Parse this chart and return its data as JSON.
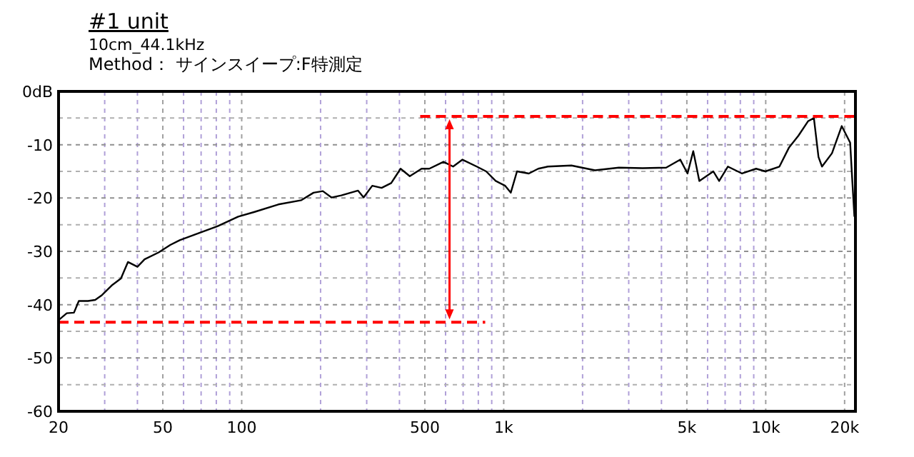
{
  "chart_data": {
    "type": "line",
    "title": "#1 unit",
    "subtitle": "10cm_44.1kHz",
    "annotations": [
      "Method： サインスイープ:F特測定"
    ],
    "log": "x",
    "grid": true,
    "xlim": [
      20,
      22000
    ],
    "ylim": [
      -60,
      0
    ],
    "xticks": [
      20,
      {
        "value": 30,
        "label": null
      },
      {
        "value": 40,
        "label": null
      },
      50,
      {
        "value": 60,
        "label": null
      },
      {
        "value": 70,
        "label": null
      },
      {
        "value": 80,
        "label": null
      },
      {
        "value": 90,
        "label": null
      },
      100,
      {
        "value": 200,
        "label": null
      },
      {
        "value": 300,
        "label": null
      },
      {
        "value": 400,
        "label": null
      },
      500,
      {
        "value": 600,
        "label": null
      },
      {
        "value": 700,
        "label": null
      },
      {
        "value": 800,
        "label": null
      },
      {
        "value": 900,
        "label": null
      },
      {
        "value": 1000,
        "label": "1k"
      },
      {
        "value": 2000,
        "label": null
      },
      {
        "value": 3000,
        "label": null
      },
      {
        "value": 4000,
        "label": null
      },
      {
        "value": 5000,
        "label": "5k"
      },
      {
        "value": 6000,
        "label": null
      },
      {
        "value": 7000,
        "label": null
      },
      {
        "value": 8000,
        "label": null
      },
      {
        "value": 9000,
        "label": null
      },
      {
        "value": 10000,
        "label": "10k"
      },
      {
        "value": 20000,
        "label": "20k"
      }
    ],
    "yticks": [
      {
        "value": 0,
        "label": "0dB"
      },
      {
        "value": -5,
        "label": null
      },
      -10,
      {
        "value": -15,
        "label": null
      },
      -20,
      {
        "value": -25,
        "label": null
      },
      -30,
      {
        "value": -35,
        "label": null
      },
      -40,
      {
        "value": -45,
        "label": null
      },
      -50,
      {
        "value": -55,
        "label": null
      },
      -60
    ],
    "series": [
      {
        "color": "#000000",
        "x": [
          20,
          21.5,
          22.9,
          23.9,
          25.9,
          27.6,
          29.3,
          31.9,
          34.6,
          36.8,
          40,
          42.6,
          48.2,
          53.4,
          58,
          68.4,
          80.8,
          97,
          112,
          138,
          169,
          188,
          204,
          220,
          240,
          278,
          292,
          315,
          342,
          372,
          404,
          438,
          486,
          520,
          589,
          641,
          696,
          789,
          857,
          932,
          1013,
          1064,
          1124,
          1247,
          1355,
          1473,
          1813,
          2230,
          2750,
          3390,
          4170,
          4720,
          5030,
          5290,
          5580,
          6310,
          6640,
          7170,
          8120,
          9190,
          9970,
          11280,
          12280,
          13330,
          14500,
          15270,
          15900,
          16400,
          17900,
          19500,
          21000,
          21400,
          21800
        ],
        "values": [
          -42.9,
          -41.6,
          -41.5,
          -39.3,
          -39.3,
          -39.1,
          -38.2,
          -36.4,
          -35.1,
          -32,
          -32.9,
          -31.5,
          -30.2,
          -28.8,
          -27.9,
          -26.6,
          -25.3,
          -23.5,
          -22.6,
          -21.2,
          -20.4,
          -19,
          -18.7,
          -19.9,
          -19.5,
          -18.6,
          -19.9,
          -17.7,
          -18.1,
          -17.2,
          -14.5,
          -15.9,
          -14.5,
          -14.5,
          -13.2,
          -14.1,
          -12.8,
          -14.1,
          -15,
          -16.8,
          -17.7,
          -19,
          -15,
          -15.4,
          -14.5,
          -14.1,
          -13.9,
          -14.8,
          -14.3,
          -14.4,
          -14.3,
          -12.8,
          -15.4,
          -11.2,
          -16.8,
          -15,
          -16.8,
          -14.1,
          -15.4,
          -14.5,
          -15,
          -14.1,
          -10.5,
          -8.3,
          -5.6,
          -5,
          -12.3,
          -14.1,
          -11.6,
          -6.5,
          -9.6,
          -16.8,
          -23.5
        ]
      },
      {
        "color": "#ff0000",
        "line_style": "dashed",
        "x": [
          480,
          22000
        ],
        "values": [
          -4.7,
          -4.7
        ]
      },
      {
        "color": "#ff0000",
        "line_style": "dashed",
        "x": [
          20,
          850
        ],
        "values": [
          -43.3,
          -43.3
        ]
      }
    ]
  }
}
